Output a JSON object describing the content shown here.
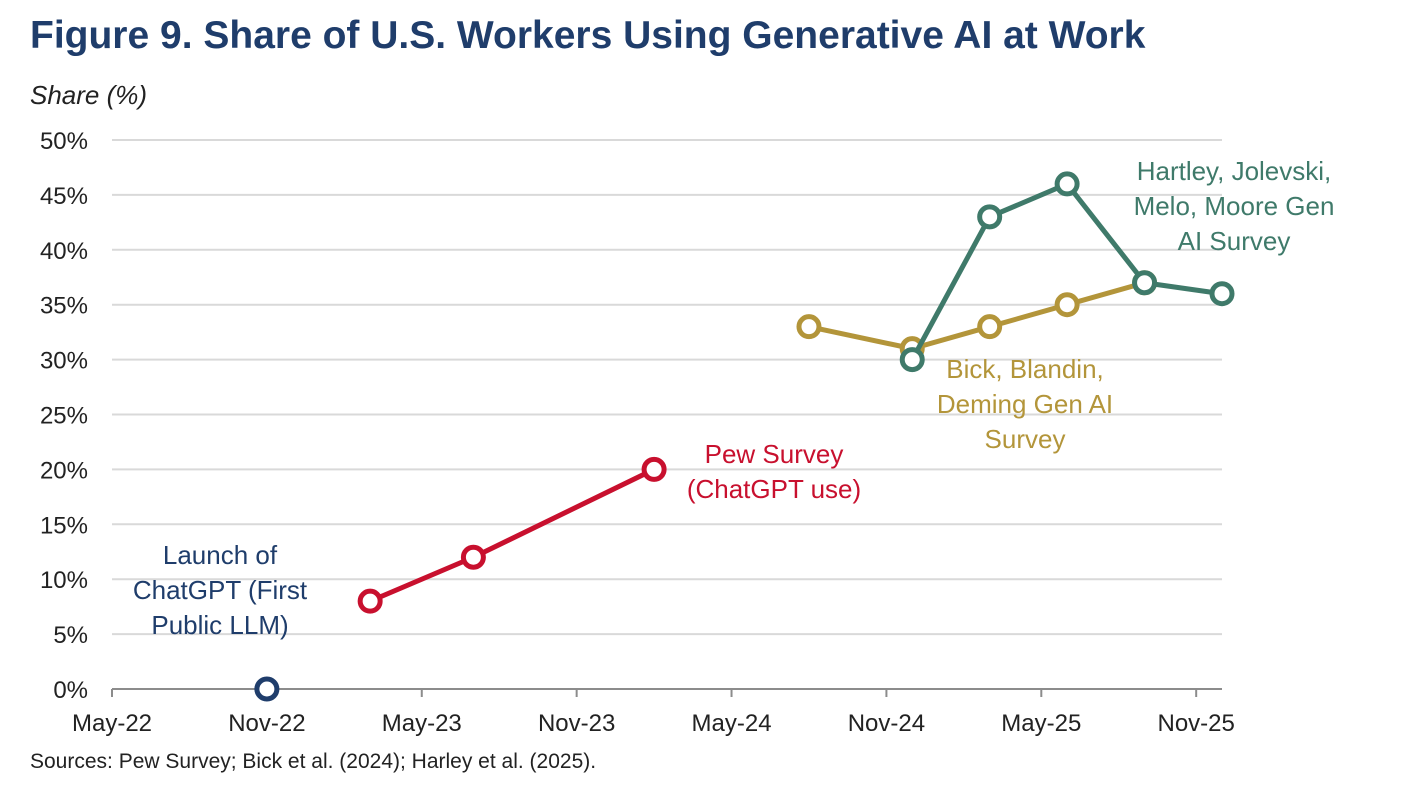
{
  "chart_data": {
    "type": "line",
    "title": "Figure 9. Share of U.S. Workers Using Generative AI at Work",
    "ylabel": "Share (%)",
    "xlabel": "",
    "ylim": [
      0,
      50
    ],
    "xlim": [
      "May-22",
      "Dec-25"
    ],
    "yticks": [
      0,
      5,
      10,
      15,
      20,
      25,
      30,
      35,
      40,
      45,
      50
    ],
    "ytick_labels": [
      "0%",
      "5%",
      "10%",
      "15%",
      "20%",
      "25%",
      "30%",
      "35%",
      "40%",
      "45%",
      "50%"
    ],
    "xticks": [
      "May-22",
      "Nov-22",
      "May-23",
      "Nov-23",
      "May-24",
      "Nov-24",
      "May-25",
      "Nov-25"
    ],
    "grid": true,
    "series": [
      {
        "name": "Launch of ChatGPT (First Public LLM)",
        "color": "#1f3d6b",
        "points": [
          {
            "x": "Nov-22",
            "y": 0
          }
        ],
        "label_lines": [
          "Launch of",
          "ChatGPT (First",
          "Public LLM)"
        ]
      },
      {
        "name": "Pew Survey (ChatGPT use)",
        "color": "#c8102e",
        "points": [
          {
            "x": "Mar-23",
            "y": 8
          },
          {
            "x": "Jul-23",
            "y": 12
          },
          {
            "x": "Feb-24",
            "y": 20
          }
        ],
        "label_lines": [
          "Pew Survey",
          "(ChatGPT use)"
        ]
      },
      {
        "name": "Bick, Blandin, Deming Gen AI Survey",
        "color": "#b3953a",
        "points": [
          {
            "x": "Aug-24",
            "y": 33
          },
          {
            "x": "Dec-24",
            "y": 31
          },
          {
            "x": "Mar-25",
            "y": 33
          },
          {
            "x": "Jun-25",
            "y": 35
          },
          {
            "x": "Sep-25",
            "y": 37
          }
        ],
        "label_lines": [
          "Bick, Blandin,",
          "Deming Gen AI",
          "Survey"
        ]
      },
      {
        "name": "Hartley, Jolevski, Melo, Moore Gen AI Survey",
        "color": "#3f7a6a",
        "points": [
          {
            "x": "Dec-24",
            "y": 30
          },
          {
            "x": "Mar-25",
            "y": 43
          },
          {
            "x": "Jun-25",
            "y": 46
          },
          {
            "x": "Sep-25",
            "y": 37
          },
          {
            "x": "Dec-25",
            "y": 36
          }
        ],
        "label_lines": [
          "Hartley, Jolevski,",
          "Melo, Moore Gen",
          "AI Survey"
        ]
      }
    ],
    "source": "Sources: Pew Survey; Bick et al. (2024); Harley et al. (2025)."
  }
}
